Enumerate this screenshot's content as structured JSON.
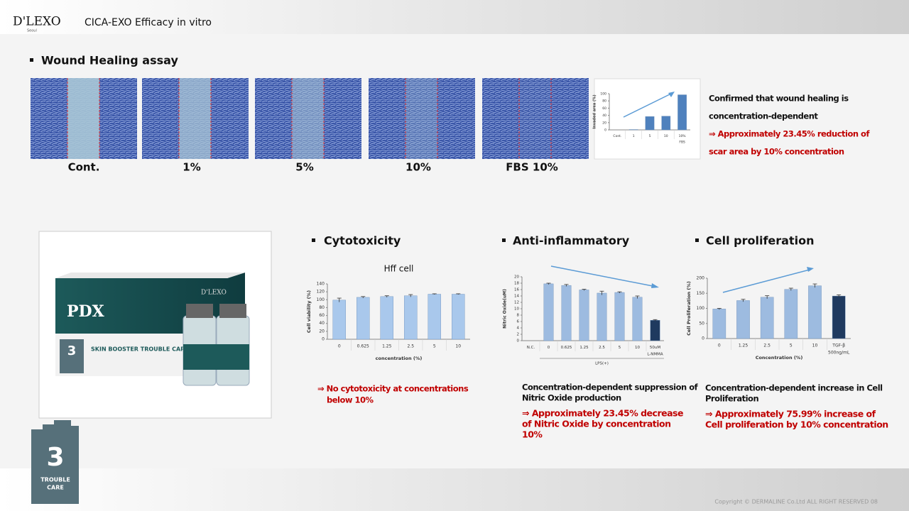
{
  "header": {
    "brand": "D'LEXO",
    "brand_sub": "Seoul",
    "title": "CICA-EXO Efficacy in vitro"
  },
  "wound": {
    "heading": "Wound Healing assay",
    "image_labels": [
      "Cont.",
      "1%",
      "5%",
      "10%",
      "FBS 10%"
    ],
    "summary": [
      "Confirmed that wound healing is",
      "concentration-dependent"
    ],
    "result": [
      "⇒  Approximately 23.45% reduction of",
      "scar area by 10% concentration"
    ]
  },
  "product": {
    "brand": "PDX",
    "maker": "D'LEXO",
    "line": "SKIN BOOSTER TROUBLE CARE",
    "badge_number": "3",
    "badge_text": [
      "TROUBLE",
      "CARE"
    ]
  },
  "sections": [
    {
      "heading": "Cytotoxicity",
      "result": [
        "⇒ No cytotoxicity at concentrations",
        "below 10%"
      ]
    },
    {
      "heading": "Anti-inflammatory",
      "summary": [
        "Concentration-dependent suppression of",
        "Nitric Oxide production"
      ],
      "result": [
        "⇒ Approximately 23.45% decrease",
        "of Nitric Oxide by concentration",
        "10%"
      ]
    },
    {
      "heading": "Cell proliferation",
      "summary": [
        "Concentration-dependent increase in Cell",
        "Proliferation"
      ],
      "result": [
        "⇒ Approximately 75.99% increase of",
        "Cell proliferation by 10% concentration"
      ]
    }
  ],
  "chart_data": [
    {
      "type": "bar",
      "y_label": "Invaded area (%)",
      "categories": [
        "Cont.",
        "1",
        "5",
        "10",
        "10%"
      ],
      "values": [
        0,
        1,
        37,
        38,
        97
      ],
      "color": "#4f81bd",
      "ylim": [
        0,
        100
      ],
      "yticks": [
        0,
        20,
        40,
        60,
        80,
        100
      ],
      "x_sub_label": "FBS"
    },
    {
      "type": "bar",
      "title": "Hff cell",
      "y_label": "Cell viability (%)",
      "x_label": "concentration (%)",
      "categories": [
        "0",
        "0.625",
        "1.25",
        "2.5",
        "5",
        "10"
      ],
      "values": [
        99,
        106,
        108,
        110,
        114,
        114
      ],
      "errors": [
        5,
        2,
        2,
        3,
        1,
        1
      ],
      "color": "#a9c8ec",
      "ylim": [
        0,
        140
      ],
      "yticks": [
        0,
        20,
        40,
        60,
        80,
        100,
        120,
        140
      ]
    },
    {
      "type": "bar",
      "y_label": "Nitric Oxide(uM)",
      "categories": [
        "N.C.",
        "0",
        "0.625",
        "1.25",
        "2.5",
        "5",
        "10",
        "50uM"
      ],
      "values": [
        0,
        17.8,
        17.3,
        15.9,
        14.9,
        15.1,
        13.6,
        6.4
      ],
      "errors": [
        0,
        0.2,
        0.3,
        0.2,
        0.6,
        0.2,
        0.4,
        0.2
      ],
      "colors": [
        "#9dbbe0",
        "#9dbbe0",
        "#9dbbe0",
        "#9dbbe0",
        "#9dbbe0",
        "#9dbbe0",
        "#9dbbe0",
        "#1f3a5f"
      ],
      "ylim": [
        0,
        20
      ],
      "yticks": [
        0,
        2,
        4,
        6,
        8,
        10,
        12,
        14,
        16,
        18,
        20
      ],
      "x_sub_label": "L-NMMA",
      "x_group_label": "LPS(+)"
    },
    {
      "type": "bar",
      "y_label": "Cell Proliferation (%)",
      "x_label": "Concentration (%)",
      "categories": [
        "0",
        "1.25",
        "2.5",
        "5",
        "10",
        "TGF-β"
      ],
      "values": [
        98,
        126,
        137,
        163,
        175,
        141
      ],
      "errors": [
        2,
        4,
        5,
        4,
        6,
        4
      ],
      "colors": [
        "#9dbbe0",
        "#9dbbe0",
        "#9dbbe0",
        "#9dbbe0",
        "#9dbbe0",
        "#1f3a5f"
      ],
      "ylim": [
        0,
        200
      ],
      "yticks": [
        0,
        50,
        100,
        150,
        200
      ],
      "x_sub_label": "500ng/mL"
    }
  ],
  "footer": {
    "copyright": "Copyright © DERMALINE Co.Ltd ALL RIGHT RESERVED  08"
  }
}
